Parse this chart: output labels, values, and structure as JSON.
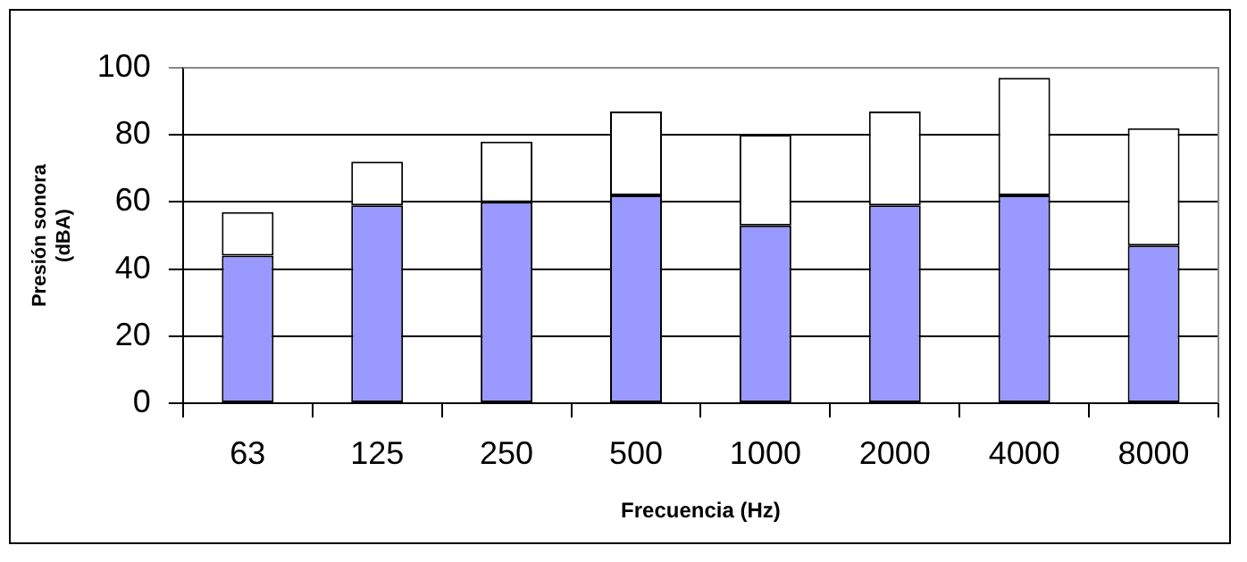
{
  "chart_data": {
    "type": "bar",
    "stacked": true,
    "xlabel": "Frecuencia (Hz)",
    "ylabel": "Presión sonora\n(dBA)",
    "categories": [
      "63",
      "125",
      "250",
      "500",
      "1000",
      "2000",
      "4000",
      "8000"
    ],
    "series": [
      {
        "color": "#9999ff",
        "values": [
          44,
          59,
          60,
          62,
          53,
          59,
          62,
          47
        ]
      },
      {
        "color": "#ffffff",
        "values": [
          13,
          13,
          18,
          25,
          27,
          28,
          35,
          35
        ]
      }
    ],
    "ylim": [
      0,
      100
    ],
    "yticks": [
      0,
      20,
      40,
      60,
      80,
      100
    ],
    "grid": "y",
    "legend": false
  }
}
